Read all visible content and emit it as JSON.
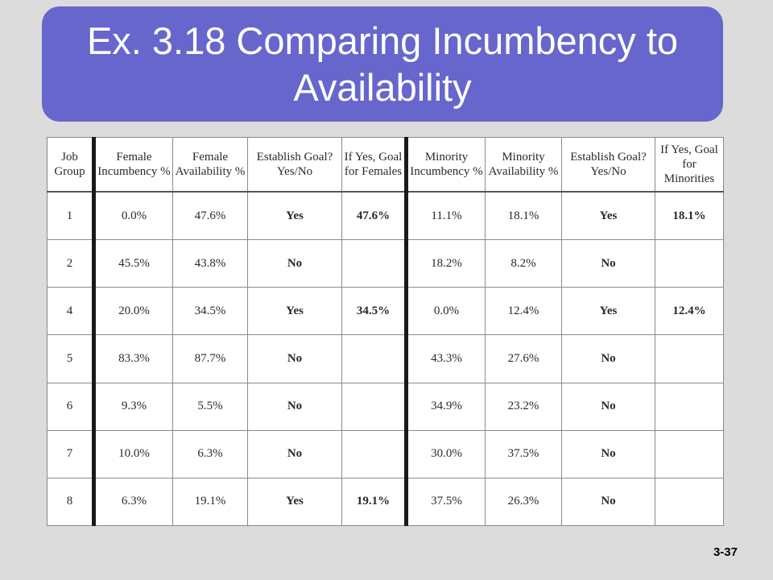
{
  "title": "Ex. 3.18 Comparing Incumbency to Availability",
  "slide_number": "3-37",
  "table": {
    "headers": [
      "Job Group",
      "Female Incumbency %",
      "Female Availability %",
      "Establish Goal? Yes/No",
      "If Yes, Goal for Females",
      "Minority Incumbency %",
      "Minority Availability %",
      "Establish Goal? Yes/No",
      "If Yes, Goal for Minorities"
    ],
    "rows": [
      [
        "1",
        "0.0%",
        "47.6%",
        "Yes",
        "47.6%",
        "11.1%",
        "18.1%",
        "Yes",
        "18.1%"
      ],
      [
        "2",
        "45.5%",
        "43.8%",
        "No",
        "",
        "18.2%",
        "8.2%",
        "No",
        ""
      ],
      [
        "4",
        "20.0%",
        "34.5%",
        "Yes",
        "34.5%",
        "0.0%",
        "12.4%",
        "Yes",
        "12.4%"
      ],
      [
        "5",
        "83.3%",
        "87.7%",
        "No",
        "",
        "43.3%",
        "27.6%",
        "No",
        ""
      ],
      [
        "6",
        "9.3%",
        "5.5%",
        "No",
        "",
        "34.9%",
        "23.2%",
        "No",
        ""
      ],
      [
        "7",
        "10.0%",
        "6.3%",
        "No",
        "",
        "30.0%",
        "37.5%",
        "No",
        ""
      ],
      [
        "8",
        "6.3%",
        "19.1%",
        "Yes",
        "19.1%",
        "37.5%",
        "26.3%",
        "No",
        ""
      ]
    ]
  }
}
